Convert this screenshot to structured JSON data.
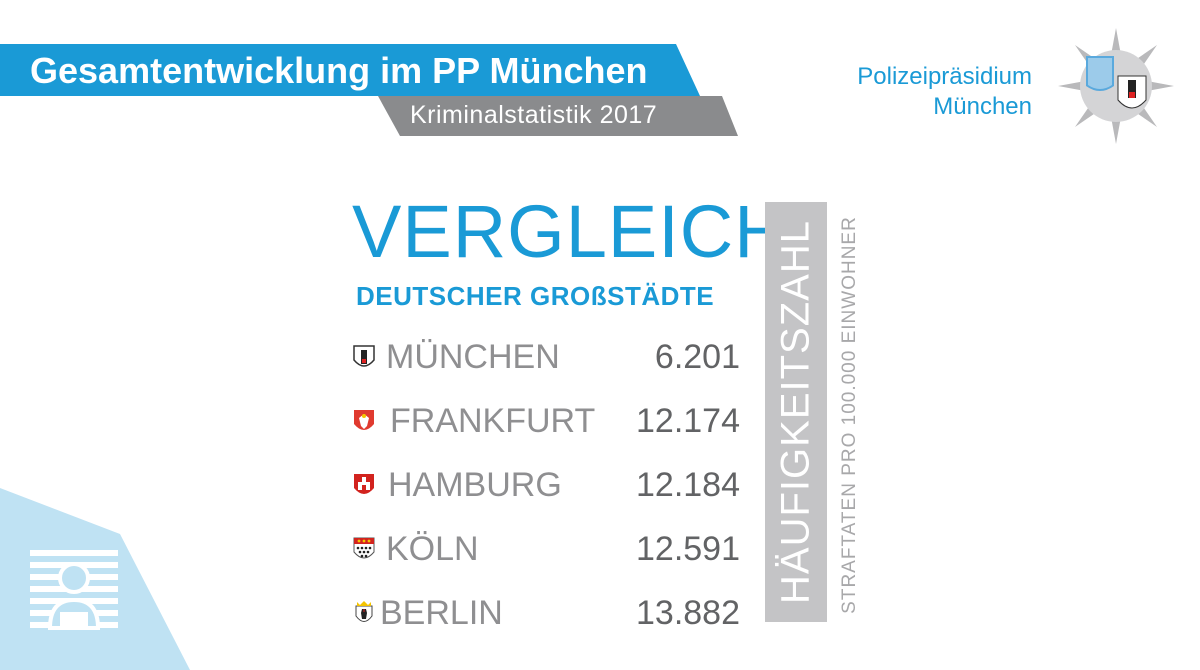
{
  "header": {
    "title": "Gesamtentwicklung im PP München",
    "subtitle": "Kriminalstatistik  2017"
  },
  "brand": {
    "line1": "Polizeipräsidium",
    "line2": "München"
  },
  "headline": "VERGLEICH",
  "subheadline": "DEUTSCHER GROßSTÄDTE",
  "vertical_label": "HÄUFIGKEITSZAHL",
  "vertical_caption": "STRAFTATEN PRO 100.000 EINWOHNER",
  "cities": [
    {
      "name": "MÜNCHEN",
      "value": "6.201"
    },
    {
      "name": "FRANKFURT",
      "value": "12.174"
    },
    {
      "name": "HAMBURG",
      "value": "12.184"
    },
    {
      "name": "KÖLN",
      "value": "12.591"
    },
    {
      "name": "BERLIN",
      "value": "13.882"
    }
  ],
  "colors": {
    "accent_blue": "#1a9ad6",
    "banner_grey": "#8a8b8d",
    "bar_grey": "#c4c4c6",
    "corner_light_blue": "#bfe2f3"
  },
  "icons": {
    "badge": "police-star-icon",
    "corner": "person-illustration-icon"
  }
}
